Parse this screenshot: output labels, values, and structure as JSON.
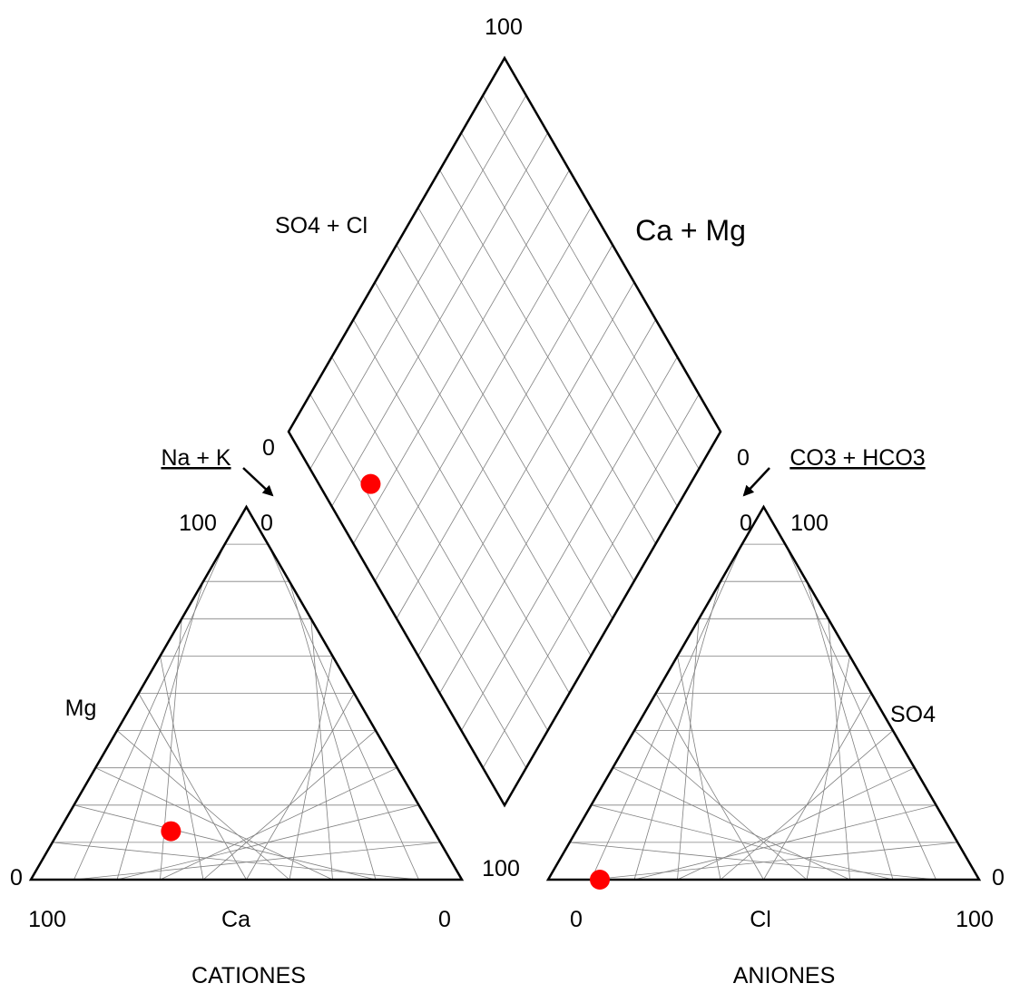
{
  "chart_data": {
    "type": "scatter",
    "subtype": "piper-diagram",
    "grid_divisions": 10,
    "colors": {
      "sample": "#ff0000",
      "outline": "#000000",
      "grid": "#808080"
    },
    "cation_triangle": {
      "title": "CATIONES",
      "bottom_axis": {
        "label": "Ca",
        "left_tick": "100",
        "right_tick": "0"
      },
      "left_axis": {
        "label": "Mg",
        "bottom_tick": "0",
        "top_tick": "100"
      },
      "apex": {
        "label": "Na + K",
        "tick": "0"
      },
      "samples": [
        {
          "Ca": 61,
          "Mg": 13,
          "NaK": 26
        }
      ]
    },
    "anion_triangle": {
      "title": "ANIONES",
      "bottom_axis": {
        "label": "Cl",
        "left_tick": "0",
        "right_tick": "100"
      },
      "right_axis": {
        "label": "SO4",
        "bottom_tick": "0",
        "top_tick": "100"
      },
      "apex": {
        "label": "CO3 + HCO3",
        "tick": "0"
      },
      "samples": [
        {
          "Cl": 12,
          "SO4": 0,
          "CO3_HCO3": 88
        }
      ]
    },
    "diamond": {
      "left_label": "SO4 + Cl",
      "right_label": "Ca + Mg",
      "top_tick": "100",
      "left_tick": "0",
      "right_tick": "0",
      "bottom_tick": "100",
      "samples": [
        {
          "SO4_Cl": 12,
          "Ca_Mg": 74
        }
      ]
    }
  }
}
